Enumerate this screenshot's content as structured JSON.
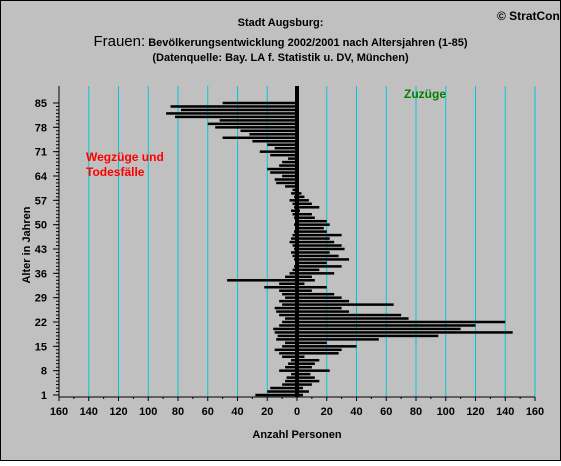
{
  "header": {
    "copyright": "© StratCon",
    "title_line1": "Stadt Augsburg:",
    "title_prefix": "Frauen:",
    "title_line2": "Bevölkerungsentwicklung 2002/2001 nach Altersjahren (1-85)",
    "title_line3": "(Datenquelle: Bay. LA f. Statistik u. DV, München)"
  },
  "colors": {
    "background": "#c0c0c0",
    "gridline": "#00c8d8",
    "bars": "#000000",
    "left_annotation": "#ff0000",
    "right_annotation": "#008000"
  },
  "chart_data": {
    "type": "bar",
    "orientation": "horizontal",
    "xlabel": "Anzahl Personen",
    "ylabel": "Alter in Jahren",
    "xlim": [
      -160,
      160
    ],
    "ylim": [
      1,
      85
    ],
    "x_ticks": [
      "160",
      "140",
      "120",
      "100",
      "80",
      "60",
      "40",
      "20",
      "0",
      "20",
      "40",
      "60",
      "80",
      "100",
      "120",
      "140",
      "160"
    ],
    "y_ticks": [
      1,
      8,
      15,
      22,
      29,
      36,
      43,
      50,
      57,
      64,
      71,
      78,
      85
    ],
    "grid": true,
    "annotations": {
      "left": [
        "Wegzüge und",
        "Todesfälle"
      ],
      "right": "Zuzüge"
    },
    "ages": [
      1,
      2,
      3,
      4,
      5,
      6,
      7,
      8,
      9,
      10,
      11,
      12,
      13,
      14,
      15,
      16,
      17,
      18,
      19,
      20,
      21,
      22,
      23,
      24,
      25,
      26,
      27,
      28,
      29,
      30,
      31,
      32,
      33,
      34,
      35,
      36,
      37,
      38,
      39,
      40,
      41,
      42,
      43,
      44,
      45,
      46,
      47,
      48,
      49,
      50,
      51,
      52,
      53,
      54,
      55,
      56,
      57,
      58,
      59,
      60,
      61,
      62,
      63,
      64,
      65,
      66,
      67,
      68,
      69,
      70,
      71,
      72,
      73,
      74,
      75,
      76,
      77,
      78,
      79,
      80,
      81,
      82,
      83,
      84,
      85
    ],
    "series": [
      {
        "name": "Zuzüge",
        "values": [
          4,
          8,
          4,
          10,
          15,
          12,
          9,
          22,
          10,
          12,
          15,
          5,
          28,
          30,
          40,
          20,
          55,
          95,
          145,
          110,
          120,
          140,
          75,
          70,
          35,
          30,
          65,
          35,
          30,
          25,
          10,
          20,
          5,
          12,
          10,
          25,
          15,
          30,
          20,
          35,
          28,
          22,
          32,
          30,
          25,
          22,
          30,
          20,
          18,
          22,
          20,
          12,
          10,
          2,
          15,
          10,
          8,
          5,
          3,
          0,
          0,
          0,
          0,
          0,
          0,
          0,
          0,
          0,
          0,
          0,
          0,
          0,
          0,
          0,
          0,
          0,
          0,
          0,
          0,
          0,
          0,
          0,
          0,
          0,
          0
        ]
      },
      {
        "name": "Wegzüge und Todesfälle",
        "values": [
          -28,
          -20,
          -18,
          -10,
          -8,
          -7,
          -4,
          -12,
          -8,
          -6,
          -4,
          -10,
          -12,
          -15,
          -10,
          -8,
          -14,
          -13,
          -15,
          -16,
          -12,
          -10,
          -8,
          -12,
          -14,
          -15,
          -10,
          -12,
          -8,
          -10,
          -12,
          -22,
          -12,
          -47,
          -8,
          -5,
          -3,
          -2,
          -1,
          -2,
          -3,
          -4,
          -2,
          -3,
          -5,
          -4,
          -3,
          -2,
          -1,
          -2,
          -1,
          -2,
          -3,
          -4,
          -2,
          -3,
          -5,
          -2,
          -4,
          -3,
          -8,
          -14,
          -15,
          -10,
          -18,
          -20,
          -12,
          -10,
          -6,
          -18,
          -25,
          -15,
          -20,
          -30,
          -50,
          -32,
          -38,
          -55,
          -60,
          -52,
          -82,
          -88,
          -78,
          -85,
          -50
        ]
      }
    ]
  }
}
